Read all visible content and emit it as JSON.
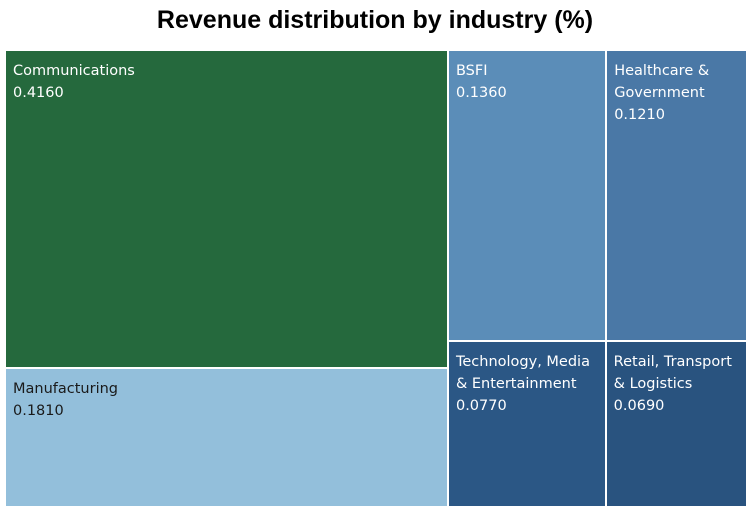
{
  "chart_data": {
    "type": "treemap",
    "title": "Revenue distribution by industry (%)",
    "categories": [
      "Communications",
      "Manufacturing",
      "BSFI",
      "Healthcare & Government",
      "Technology, Media & Entertainment",
      "Retail, Transport & Logistics"
    ],
    "values": [
      0.416,
      0.181,
      0.136,
      0.121,
      0.077,
      0.069
    ],
    "value_labels": [
      "0.4160",
      "0.1810",
      "0.1360",
      "0.1210",
      "0.0770",
      "0.0690"
    ],
    "colors": [
      "#25693d",
      "#93bfdb",
      "#5b8db8",
      "#4a78a6",
      "#2b5785",
      "#29537f"
    ]
  }
}
